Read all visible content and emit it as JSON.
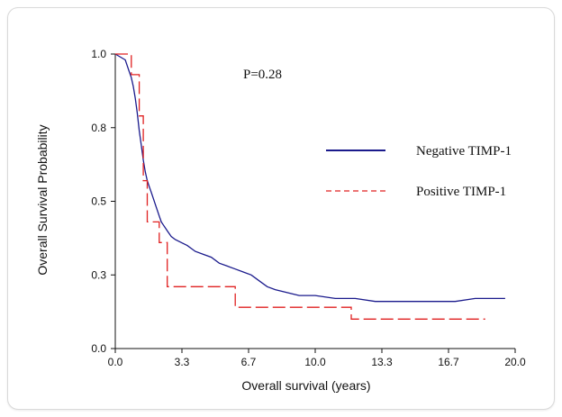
{
  "chart_data": {
    "type": "line",
    "title": "",
    "xlabel": "Overall survival (years)",
    "ylabel": "Overall Survival Probability",
    "xlim": [
      0,
      20
    ],
    "ylim": [
      0,
      1
    ],
    "x_ticks": [
      {
        "value": 0,
        "label": "0.0"
      },
      {
        "value": 3.333,
        "label": "3.3"
      },
      {
        "value": 6.667,
        "label": "6.7"
      },
      {
        "value": 10,
        "label": "10.0"
      },
      {
        "value": 13.333,
        "label": "13.3"
      },
      {
        "value": 16.667,
        "label": "16.7"
      },
      {
        "value": 20,
        "label": "20.0"
      }
    ],
    "y_ticks": [
      {
        "value": 0,
        "label": "0.0"
      },
      {
        "value": 0.25,
        "label": "0.3"
      },
      {
        "value": 0.5,
        "label": "0.5"
      },
      {
        "value": 0.75,
        "label": "0.8"
      },
      {
        "value": 1,
        "label": "1.0"
      }
    ],
    "annotation": "P=0.28",
    "legend_position": "right",
    "grid": false,
    "series": [
      {
        "name": "Negative TIMP-1",
        "color": "#1a1a8c",
        "style": "solid",
        "x": [
          0,
          0.5,
          0.6,
          0.7,
          0.8,
          0.9,
          1.0,
          1.1,
          1.2,
          1.3,
          1.4,
          1.5,
          1.6,
          1.7,
          1.8,
          1.9,
          2.0,
          2.1,
          2.2,
          2.3,
          2.4,
          2.6,
          2.8,
          3.0,
          3.3,
          3.6,
          4.0,
          4.4,
          4.8,
          5.2,
          5.6,
          6.0,
          6.4,
          6.8,
          7.2,
          7.6,
          8.0,
          8.6,
          9.2,
          10.0,
          11.0,
          12.0,
          13.0,
          14.0,
          15.0,
          16.0,
          17.0,
          18.0,
          19.5
        ],
        "y": [
          1.0,
          0.98,
          0.96,
          0.94,
          0.92,
          0.89,
          0.85,
          0.8,
          0.74,
          0.69,
          0.64,
          0.6,
          0.57,
          0.55,
          0.53,
          0.51,
          0.49,
          0.47,
          0.45,
          0.43,
          0.42,
          0.4,
          0.38,
          0.37,
          0.36,
          0.35,
          0.33,
          0.32,
          0.31,
          0.29,
          0.28,
          0.27,
          0.26,
          0.25,
          0.23,
          0.21,
          0.2,
          0.19,
          0.18,
          0.18,
          0.17,
          0.17,
          0.16,
          0.16,
          0.16,
          0.16,
          0.16,
          0.17,
          0.17
        ]
      },
      {
        "name": "Positive TIMP-1",
        "color": "#e02020",
        "style": "dashed",
        "x": [
          0,
          0.5,
          0.8,
          0.8,
          1.2,
          1.2,
          1.4,
          1.4,
          1.6,
          1.6,
          2.2,
          2.2,
          2.6,
          2.6,
          3.4,
          3.4,
          6.0,
          6.0,
          11.8,
          11.8,
          18.5
        ],
        "y": [
          1.0,
          1.0,
          1.0,
          0.93,
          0.93,
          0.79,
          0.79,
          0.57,
          0.57,
          0.43,
          0.43,
          0.36,
          0.36,
          0.21,
          0.21,
          0.21,
          0.21,
          0.14,
          0.14,
          0.1,
          0.1
        ]
      }
    ]
  }
}
